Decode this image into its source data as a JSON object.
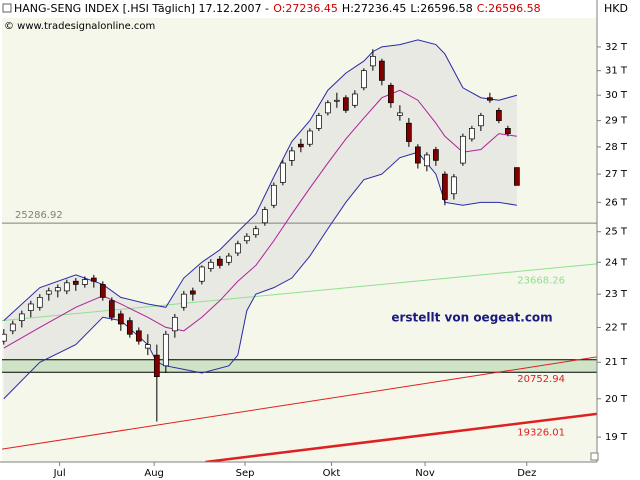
{
  "header": {
    "title": "HANG-SENG INDEX [.HSI  Täglich] 17.12.2007  -",
    "quote": [
      {
        "text": "O:27236.45",
        "color": "#cc0000"
      },
      {
        "text": "H:27236.45",
        "color": "#000000"
      },
      {
        "text": "L:26596.58",
        "color": "#000000"
      },
      {
        "text": "C:26596.58",
        "color": "#cc0000"
      }
    ],
    "copyright": "© www.tradesignalonline.com",
    "currency": "HKD"
  },
  "chart_data": {
    "type": "candlestick",
    "log_scale": true,
    "background": "#f4f7ea",
    "ylim": [
      18.38,
      33.26
    ],
    "yticks": [
      {
        "value": 19,
        "label": "19 T"
      },
      {
        "value": 20,
        "label": "20 T"
      },
      {
        "value": 21,
        "label": "21 T"
      },
      {
        "value": 22,
        "label": "22 T"
      },
      {
        "value": 23,
        "label": "23 T"
      },
      {
        "value": 24,
        "label": "24 T"
      },
      {
        "value": 25,
        "label": "25 T"
      },
      {
        "value": 26,
        "label": "26 T"
      },
      {
        "value": 27,
        "label": "27 T"
      },
      {
        "value": 28,
        "label": "28 T"
      },
      {
        "value": 29,
        "label": "29 T"
      },
      {
        "value": 30,
        "label": "30 T"
      },
      {
        "value": 31,
        "label": "31 T"
      },
      {
        "value": 32,
        "label": "32 T"
      }
    ],
    "xlim": [
      -0.2,
      65.9
    ],
    "xticks": [
      {
        "value": 6.2,
        "label": "Jul"
      },
      {
        "value": 16.7,
        "label": "Aug"
      },
      {
        "value": 26.8,
        "label": "Sep"
      },
      {
        "value": 36.4,
        "label": "Okt"
      },
      {
        "value": 46.8,
        "label": "Nov"
      },
      {
        "value": 58.1,
        "label": "Dez"
      }
    ],
    "up_color": "#ffffff",
    "down_color": "#800000",
    "wick_color": "#000000",
    "candles": [
      [
        21.6,
        21.95,
        21.5,
        21.8
      ],
      [
        21.9,
        22.2,
        21.8,
        22.1
      ],
      [
        22.2,
        22.5,
        22.0,
        22.4
      ],
      [
        22.5,
        22.8,
        22.3,
        22.7
      ],
      [
        22.6,
        23.0,
        22.5,
        22.9
      ],
      [
        23.0,
        23.2,
        22.8,
        23.1
      ],
      [
        23.1,
        23.3,
        22.9,
        23.2
      ],
      [
        23.1,
        23.45,
        23.0,
        23.35
      ],
      [
        23.4,
        23.5,
        23.1,
        23.3
      ],
      [
        23.3,
        23.55,
        23.2,
        23.45
      ],
      [
        23.5,
        23.6,
        23.2,
        23.4
      ],
      [
        23.3,
        23.4,
        22.8,
        22.9
      ],
      [
        22.8,
        22.9,
        22.2,
        22.3
      ],
      [
        22.4,
        22.5,
        21.9,
        22.1
      ],
      [
        22.2,
        22.3,
        21.7,
        21.8
      ],
      [
        21.9,
        22.0,
        21.5,
        21.6
      ],
      [
        21.4,
        21.8,
        21.2,
        21.5
      ],
      [
        21.2,
        21.5,
        19.4,
        20.6
      ],
      [
        20.9,
        21.9,
        20.7,
        21.8
      ],
      [
        21.9,
        22.4,
        21.7,
        22.3
      ],
      [
        22.6,
        23.1,
        22.5,
        23.0
      ],
      [
        23.1,
        23.2,
        22.8,
        23.0
      ],
      [
        23.4,
        23.9,
        23.3,
        23.85
      ],
      [
        23.8,
        24.1,
        23.7,
        24.0
      ],
      [
        24.1,
        24.2,
        23.8,
        23.9
      ],
      [
        24.0,
        24.3,
        23.9,
        24.2
      ],
      [
        24.3,
        24.7,
        24.2,
        24.6
      ],
      [
        24.7,
        24.95,
        24.6,
        24.85
      ],
      [
        24.9,
        25.2,
        24.8,
        25.1
      ],
      [
        25.3,
        25.85,
        25.2,
        25.75
      ],
      [
        25.9,
        26.7,
        25.8,
        26.6
      ],
      [
        26.7,
        27.5,
        26.6,
        27.4
      ],
      [
        27.5,
        28.0,
        27.3,
        27.85
      ],
      [
        28.1,
        28.3,
        27.8,
        28.0
      ],
      [
        28.1,
        28.7,
        28.0,
        28.6
      ],
      [
        28.7,
        29.3,
        28.6,
        29.2
      ],
      [
        29.3,
        29.8,
        29.2,
        29.7
      ],
      [
        29.8,
        30.1,
        29.5,
        29.8
      ],
      [
        29.9,
        30.0,
        29.3,
        29.4
      ],
      [
        29.6,
        30.2,
        29.5,
        30.05
      ],
      [
        30.3,
        31.1,
        30.2,
        31.0
      ],
      [
        31.2,
        31.9,
        31.0,
        31.6
      ],
      [
        31.4,
        31.5,
        30.4,
        30.6
      ],
      [
        30.4,
        30.5,
        29.5,
        29.7
      ],
      [
        29.2,
        29.6,
        29.0,
        29.3
      ],
      [
        28.9,
        29.1,
        28.0,
        28.2
      ],
      [
        28.0,
        28.1,
        27.2,
        27.4
      ],
      [
        27.3,
        27.8,
        27.1,
        27.7
      ],
      [
        27.9,
        28.0,
        27.3,
        27.5
      ],
      [
        27.0,
        27.1,
        25.9,
        26.1
      ],
      [
        26.3,
        27.0,
        26.1,
        26.9
      ],
      [
        27.4,
        28.5,
        27.3,
        28.4
      ],
      [
        28.3,
        28.8,
        28.2,
        28.7
      ],
      [
        28.8,
        29.3,
        28.6,
        29.2
      ],
      [
        29.9,
        30.1,
        29.7,
        29.8
      ],
      [
        29.4,
        29.5,
        28.9,
        29.0
      ],
      [
        28.7,
        28.8,
        28.4,
        28.5
      ],
      [
        27.23645,
        27.23645,
        26.59658,
        26.59658
      ]
    ],
    "band_fill": "#e8e9e2",
    "bands": [
      {
        "color": "#2a2aa8",
        "x": [
          0,
          4,
          8,
          11,
          13,
          16,
          18,
          20,
          22,
          24,
          26,
          28,
          30,
          32,
          34,
          36,
          38,
          40,
          41,
          42,
          44,
          46,
          48,
          49,
          51,
          53,
          55,
          57
        ],
        "values": [
          22.2,
          23.2,
          23.6,
          23.3,
          22.9,
          22.7,
          22.6,
          23.5,
          24.0,
          24.4,
          25.0,
          25.6,
          26.9,
          28.2,
          29.0,
          30.2,
          30.9,
          31.4,
          31.8,
          32.0,
          32.1,
          32.3,
          32.1,
          31.7,
          30.3,
          29.9,
          29.8,
          30.0
        ]
      },
      {
        "color": "#b0209a",
        "x": [
          0,
          4,
          8,
          11,
          13,
          16,
          18,
          20,
          22,
          24,
          26,
          28,
          30,
          32,
          34,
          36,
          38,
          40,
          42,
          44,
          46,
          48,
          49,
          51,
          53,
          55,
          57
        ],
        "values": [
          21.4,
          22.0,
          22.6,
          22.95,
          22.7,
          22.3,
          22.0,
          21.9,
          22.3,
          22.8,
          23.4,
          23.9,
          24.7,
          25.6,
          26.5,
          27.4,
          28.3,
          29.1,
          29.9,
          30.2,
          29.8,
          28.9,
          28.4,
          27.8,
          27.9,
          28.5,
          28.4
        ]
      },
      {
        "color": "#2a2aa8",
        "x": [
          0,
          4,
          8,
          11,
          13,
          16,
          17,
          18,
          20,
          22,
          25,
          26,
          27,
          28,
          30,
          32,
          34,
          36,
          38,
          40,
          42,
          44,
          46,
          48,
          49,
          51,
          53,
          55,
          57
        ],
        "values": [
          20.0,
          21.0,
          21.5,
          22.3,
          22.2,
          21.5,
          21.0,
          20.9,
          20.8,
          20.7,
          20.9,
          21.2,
          22.5,
          23.0,
          23.2,
          23.5,
          24.2,
          25.1,
          26.0,
          26.8,
          27.0,
          27.6,
          27.8,
          27.0,
          26.0,
          25.9,
          26.0,
          26.0,
          25.9
        ]
      }
    ],
    "zone": {
      "values": [
        20.72,
        21.07
      ],
      "color": "#cfe4c6"
    },
    "lines": [
      {
        "x": [
          -0.2,
          65.9
        ],
        "values": [
          25.28692,
          25.28692
        ],
        "color": "#808080",
        "width": 1,
        "label": "25286.92",
        "label_value": 25.28692,
        "label_side": "left"
      },
      {
        "x": [
          -0.2,
          65.9
        ],
        "values": [
          22.2,
          23.95
        ],
        "color": "#90e090",
        "width": 1,
        "label": "23668.26",
        "label_value": 23.66826,
        "label_side": "right"
      },
      {
        "x": [
          -0.2,
          65.9
        ],
        "values": [
          18.7,
          21.15
        ],
        "color": "#e02020",
        "width": 1,
        "label": "20752.94",
        "label_value": 20.75294,
        "label_side": "right"
      },
      {
        "x": [
          22.4,
          65.9
        ],
        "values": [
          18.38,
          19.6
        ],
        "color": "#e02020",
        "width": 2.5,
        "label": "19326.01",
        "label_value": 19.32601,
        "label_side": "right"
      }
    ],
    "annotation": "erstellt von oegeat.com"
  }
}
